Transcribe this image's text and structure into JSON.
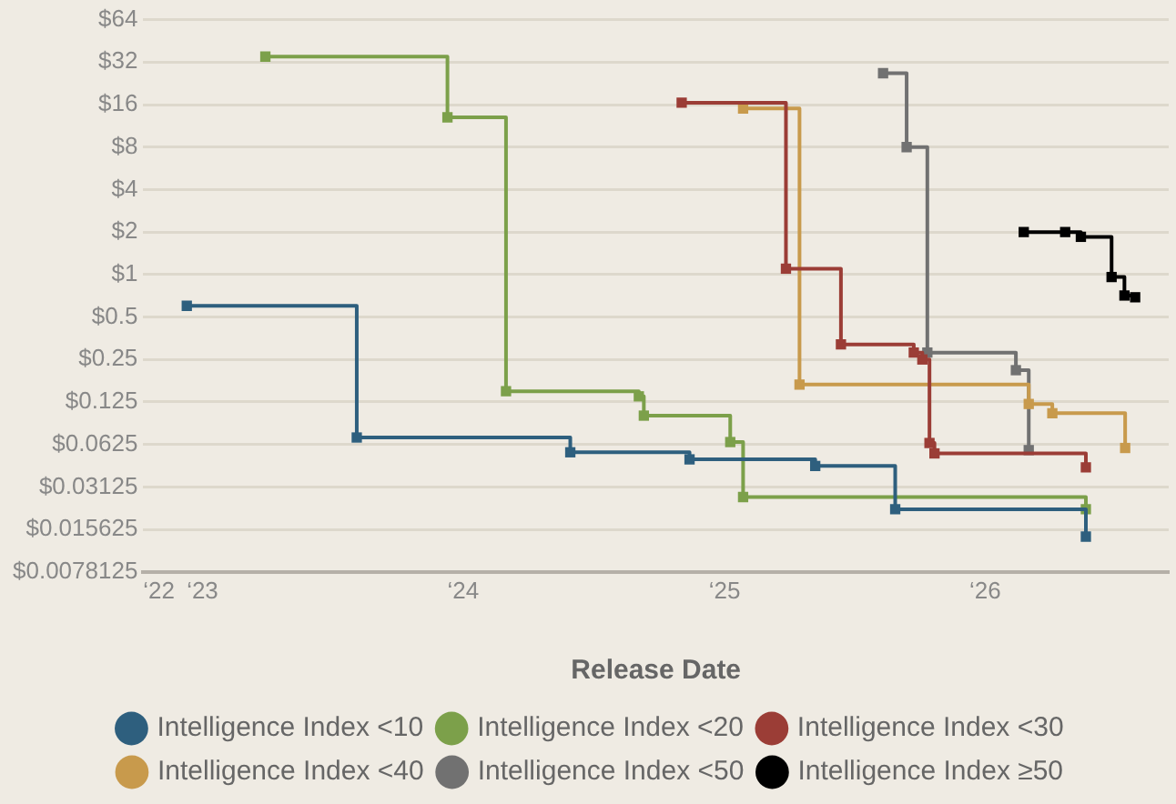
{
  "chart_data": {
    "type": "step",
    "xlabel": "Release Date",
    "log": "y",
    "grid": "y",
    "legend": "bottom",
    "marker": "square",
    "line_style": "solid",
    "xlim": [
      "2022-10-10",
      "2026-09-15"
    ],
    "xticks": [
      {
        "value": "2022-11-01",
        "label": "‘22"
      },
      {
        "value": "2023-01-01",
        "label": "‘23"
      },
      {
        "value": "2024-01-01",
        "label": "‘24"
      },
      {
        "value": "2025-01-01",
        "label": "‘25"
      },
      {
        "value": "2026-01-01",
        "label": "‘26"
      }
    ],
    "ylim": [
      0.0078125,
      64
    ],
    "yticks": [
      {
        "value": 0.0078125,
        "label": "$0.0078125"
      },
      {
        "value": 0.015625,
        "label": "$0.015625"
      },
      {
        "value": 0.03125,
        "label": "$0.03125"
      },
      {
        "value": 0.0625,
        "label": "$0.0625"
      },
      {
        "value": 0.125,
        "label": "$0.125"
      },
      {
        "value": 0.25,
        "label": "$0.25"
      },
      {
        "value": 0.5,
        "label": "$0.5"
      },
      {
        "value": 1,
        "label": "$1"
      },
      {
        "value": 2,
        "label": "$2"
      },
      {
        "value": 4,
        "label": "$4"
      },
      {
        "value": 8,
        "label": "$8"
      },
      {
        "value": 16,
        "label": "$16"
      },
      {
        "value": 32,
        "label": "$32"
      },
      {
        "value": 64,
        "label": "$64"
      }
    ],
    "series": [
      {
        "name": "Intelligence Index <10",
        "color": "#2e5f7e",
        "x": [
          "2022-12-10",
          "2023-08-05",
          "2024-05-30",
          "2024-11-13",
          "2025-05-08",
          "2025-08-28",
          "2026-05-22"
        ],
        "values": [
          0.6,
          0.07,
          0.055,
          0.049,
          0.044,
          0.0217,
          0.0139
        ]
      },
      {
        "name": "Intelligence Index <20",
        "color": "#7ca04a",
        "x": [
          "2023-03-30",
          "2023-12-10",
          "2024-03-01",
          "2024-09-03",
          "2024-09-10",
          "2025-01-09",
          "2025-01-27",
          "2026-05-22"
        ],
        "values": [
          35,
          13,
          0.149,
          0.137,
          0.1,
          0.065,
          0.0265,
          0.0217
        ]
      },
      {
        "name": "Intelligence Index <30",
        "color": "#9b3d36",
        "x": [
          "2024-11-02",
          "2025-03-28",
          "2025-06-13",
          "2025-09-23",
          "2025-10-05",
          "2025-10-15",
          "2025-10-22",
          "2026-05-22"
        ],
        "values": [
          16.5,
          1.1,
          0.32,
          0.28,
          0.25,
          0.064,
          0.054,
          0.043
        ]
      },
      {
        "name": "Intelligence Index <40",
        "color": "#c89a4c",
        "x": [
          "2025-01-27",
          "2025-04-16",
          "2026-03-03",
          "2026-04-05",
          "2026-07-16"
        ],
        "values": [
          15,
          0.166,
          0.121,
          0.104,
          0.059
        ]
      },
      {
        "name": "Intelligence Index <50",
        "color": "#717171",
        "x": [
          "2025-08-11",
          "2025-09-13",
          "2025-10-12",
          "2026-02-13",
          "2026-03-03"
        ],
        "values": [
          26.7,
          8,
          0.28,
          0.21,
          0.057
        ]
      },
      {
        "name": "Intelligence Index ≥50",
        "color": "#000000",
        "x": [
          "2026-02-24",
          "2026-04-23",
          "2026-05-15",
          "2026-06-27",
          "2026-07-15",
          "2026-07-30"
        ],
        "values": [
          2,
          2,
          1.85,
          0.96,
          0.71,
          0.69
        ]
      }
    ]
  }
}
